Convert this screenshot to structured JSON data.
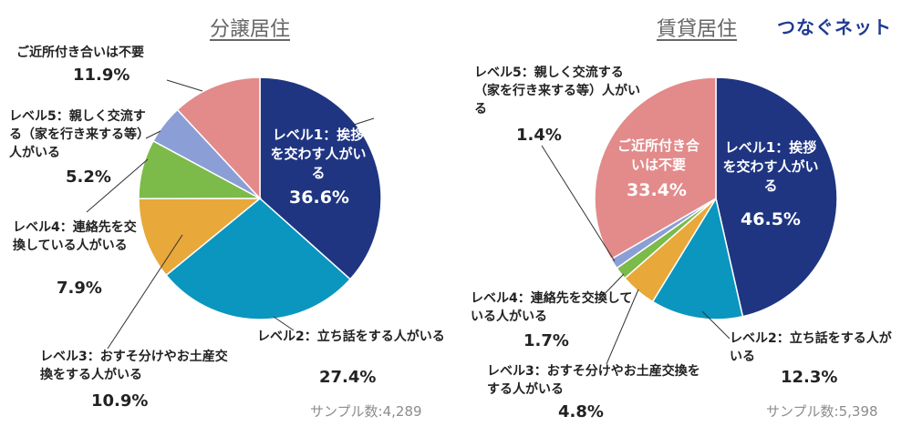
{
  "brand": "つなぐネット",
  "chart_data": [
    {
      "type": "pie",
      "title": "分譲居住",
      "sample_label": "サンプル数:4,289",
      "slices": [
        {
          "label": "レベル1：挨拶を交わす人がいる",
          "value": 36.6,
          "pct": "36.6%",
          "color": "#1f3582"
        },
        {
          "label": "レベル2：立ち話をする人がいる",
          "value": 27.4,
          "pct": "27.4%",
          "color": "#0a96bf"
        },
        {
          "label": "レベル3：おすそ分けやお土産交換をする人がいる",
          "value": 10.9,
          "pct": "10.9%",
          "color": "#e8a83a"
        },
        {
          "label": "レベル4：連絡先を交換している人がいる",
          "value": 7.9,
          "pct": "7.9%",
          "color": "#7cba4a"
        },
        {
          "label": "レベル5：親しく交流する（家を行き来する等）人がいる",
          "value": 5.2,
          "pct": "5.2%",
          "color": "#8b9ed6"
        },
        {
          "label": "ご近所付き合いは不要",
          "value": 11.9,
          "pct": "11.9%",
          "color": "#e38a8a"
        }
      ]
    },
    {
      "type": "pie",
      "title": "賃貸居住",
      "sample_label": "サンプル数:5,398",
      "slices": [
        {
          "label": "レベル1：挨拶を交わす人がいる",
          "value": 46.5,
          "pct": "46.5%",
          "color": "#1f3582"
        },
        {
          "label": "レベル2：立ち話をする人がいる",
          "value": 12.3,
          "pct": "12.3%",
          "color": "#0a96bf"
        },
        {
          "label": "レベル3：おすそ分けやお土産交換をする人がいる",
          "value": 4.8,
          "pct": "4.8%",
          "color": "#e8a83a"
        },
        {
          "label": "レベル4：連絡先を交換している人がいる",
          "value": 1.7,
          "pct": "1.7%",
          "color": "#7cba4a"
        },
        {
          "label": "レベル5：親しく交流する（家を行き来する等）人がいる",
          "value": 1.4,
          "pct": "1.4%",
          "color": "#8b9ed6"
        },
        {
          "label": "ご近所付き合いは不要",
          "value": 33.4,
          "pct": "33.4%",
          "color": "#e38a8a"
        }
      ]
    }
  ]
}
